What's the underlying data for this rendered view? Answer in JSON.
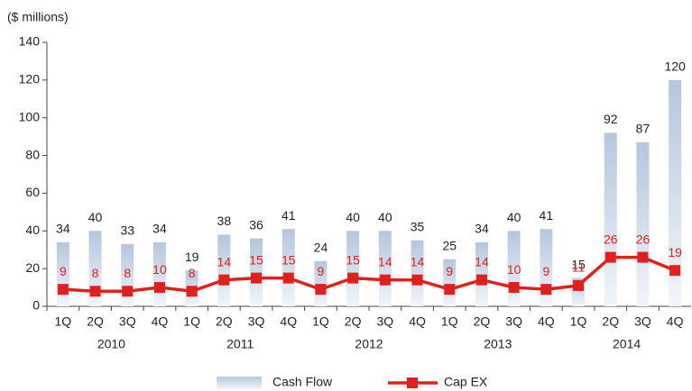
{
  "chart_data": {
    "type": "bar",
    "y_label": "($ millions)",
    "categories": [
      "1Q",
      "2Q",
      "3Q",
      "4Q",
      "1Q",
      "2Q",
      "3Q",
      "4Q",
      "1Q",
      "2Q",
      "3Q",
      "4Q",
      "1Q",
      "2Q",
      "3Q",
      "4Q",
      "1Q",
      "2Q",
      "3Q",
      "4Q"
    ],
    "category_groups": [
      "2010",
      "2011",
      "2012",
      "2013",
      "2014"
    ],
    "ylim": [
      0,
      140
    ],
    "yticks": [
      0,
      20,
      40,
      60,
      80,
      100,
      120,
      140
    ],
    "legend": "bottom",
    "series": [
      {
        "name": "Cash Flow",
        "type": "bar",
        "color": "#b4c6de",
        "values": [
          34,
          40,
          33,
          34,
          19,
          38,
          36,
          41,
          24,
          40,
          40,
          35,
          25,
          34,
          40,
          41,
          15,
          92,
          87,
          120
        ]
      },
      {
        "name": "Cap EX",
        "type": "line",
        "color": "#e0201b",
        "values": [
          9,
          8,
          8,
          10,
          8,
          14,
          15,
          15,
          9,
          15,
          14,
          14,
          9,
          14,
          10,
          9,
          11,
          26,
          26,
          19
        ]
      }
    ]
  }
}
